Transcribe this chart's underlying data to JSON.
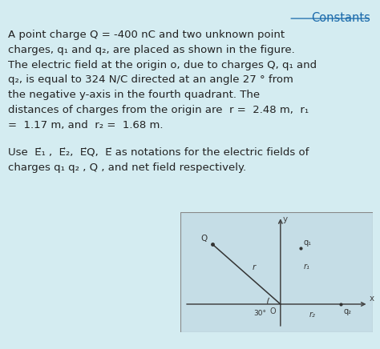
{
  "bg_color": "#d4ecf1",
  "title_text": "Constants",
  "title_color": "#1a6aab",
  "text_color": "#222222",
  "line1": "A point charge Q = -400 nC and two unknown point",
  "line2": "charges, q₁ and q₂, are placed as shown in the figure.",
  "line3": "The electric field at the origin o, due to charges Q, q₁ and",
  "line4": "q₂, is equal to 324 N/C directed at an angle 27 ° from",
  "line5": "the negative y-axis in the fourth quadrant. The",
  "line6": "distances of charges from the origin are  r =  2.48 m,  r₁",
  "line7": "=  1.17 m, and  r₂ =  1.68 m.",
  "line8": "Use  E⃗₁ ,  E⃗₂,  E⃗Q,  E⃗ as notations for the electric fields of",
  "line9": "charges q₁ q₂ , Q , and net field respectively.",
  "diag_bg": "#c5dde6",
  "axis_color": "#444444",
  "Q_label": "Q",
  "q1_label": "q₁",
  "q2_label": "q₂",
  "r_label": "r",
  "r1_label": "r₁",
  "r2_label": "r₂",
  "angle_label": "30°",
  "O_label": "O",
  "x_label": "x",
  "y_label": "y",
  "Qx": -1.7,
  "Qy": 1.5,
  "q1x": 0.5,
  "q1y": 1.4,
  "q2x": 1.5,
  "q2y": 0.0
}
